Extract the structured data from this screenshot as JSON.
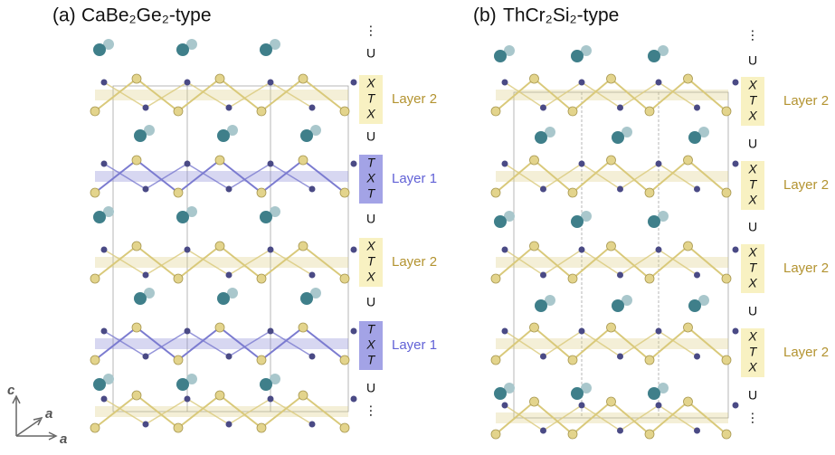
{
  "panels": [
    {
      "label": "(a)",
      "title": "CaBe₂Ge₂-type",
      "stack": [
        "⋮",
        "U",
        {
          "letters": [
            "X",
            "T",
            "X"
          ],
          "layer": "Layer 2",
          "box_color": "#f8f1c2",
          "text_color": "#b39330"
        },
        "U",
        {
          "letters": [
            "T",
            "X",
            "T"
          ],
          "layer": "Layer 1",
          "box_color": "#a3a3e6",
          "text_color": "#6161d6"
        },
        "U",
        {
          "letters": [
            "X",
            "T",
            "X"
          ],
          "layer": "Layer 2",
          "box_color": "#f8f1c2",
          "text_color": "#b39330"
        },
        "U",
        {
          "letters": [
            "T",
            "X",
            "T"
          ],
          "layer": "Layer 1",
          "box_color": "#a3a3e6",
          "text_color": "#6161d6"
        },
        "U",
        "⋮"
      ]
    },
    {
      "label": "(b)",
      "title": "ThCr₂Si₂-type",
      "stack": [
        "⋮",
        "U",
        {
          "letters": [
            "X",
            "T",
            "X"
          ],
          "layer": "Layer 2",
          "box_color": "#f8f1c2",
          "text_color": "#b39330"
        },
        "U",
        {
          "letters": [
            "X",
            "T",
            "X"
          ],
          "layer": "Layer 2",
          "box_color": "#f8f1c2",
          "text_color": "#b39330"
        },
        "U",
        {
          "letters": [
            "X",
            "T",
            "X"
          ],
          "layer": "Layer 2",
          "box_color": "#f8f1c2",
          "text_color": "#b39330"
        },
        "U",
        {
          "letters": [
            "X",
            "T",
            "X"
          ],
          "layer": "Layer 2",
          "box_color": "#f8f1c2",
          "text_color": "#b39330"
        },
        "U",
        "⋮"
      ]
    }
  ],
  "axes": [
    "c",
    "a",
    "a"
  ]
}
